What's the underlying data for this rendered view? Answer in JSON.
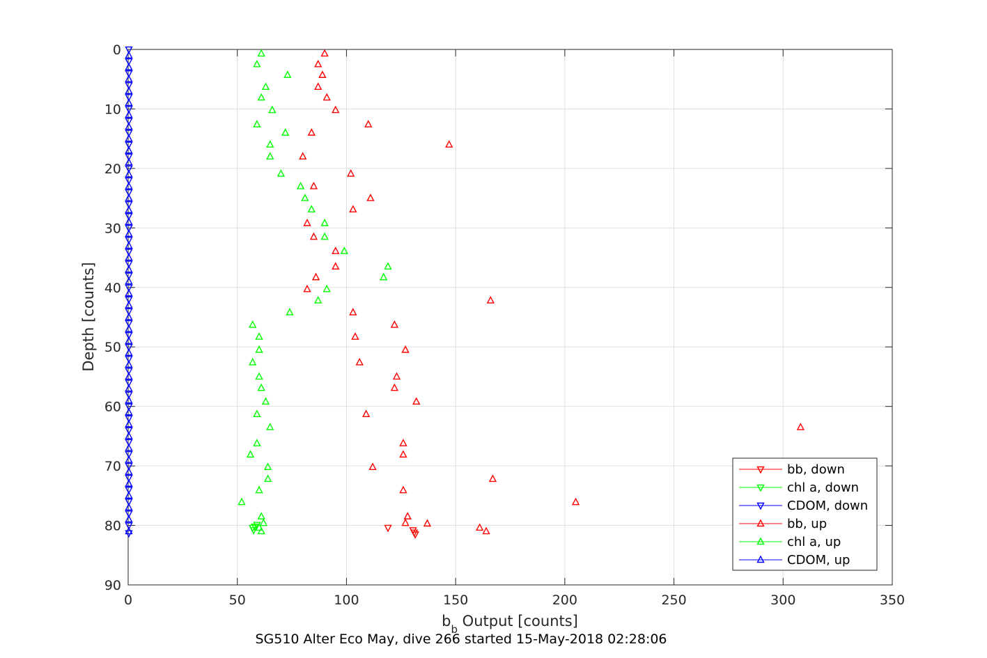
{
  "chart_data": {
    "type": "scatter",
    "xlabel_main": "b",
    "xlabel_sub": "b",
    "xlabel_rest": " Output [counts]",
    "ylabel": "Depth [counts]",
    "caption": "SG510 Alter Eco May, dive 266 started 15-May-2018 02:28:06",
    "xlim": [
      0,
      350
    ],
    "ylim": [
      0,
      90
    ],
    "y_reversed": true,
    "grid": true,
    "legend_position": "bottom-right",
    "x_ticks": [
      "0",
      "50",
      "100",
      "150",
      "200",
      "250",
      "300",
      "350"
    ],
    "y_ticks": [
      "0",
      "10",
      "20",
      "30",
      "40",
      "50",
      "60",
      "70",
      "80",
      "90"
    ],
    "legend": [
      {
        "label": "bb, down",
        "color": "#ff0000",
        "marker": "down"
      },
      {
        "label": "chl a, down",
        "color": "#00ff00",
        "marker": "down"
      },
      {
        "label": "CDOM, down",
        "color": "#0000ff",
        "marker": "down"
      },
      {
        "label": "bb, up",
        "color": "#ff0000",
        "marker": "up"
      },
      {
        "label": "chl a, up",
        "color": "#00ff00",
        "marker": "up"
      },
      {
        "label": "CDOM, up",
        "color": "#0000ff",
        "marker": "up"
      }
    ],
    "series": [
      {
        "name": "bb, down",
        "color": "#ff0000",
        "marker": "down",
        "points": [
          [
            119,
            80.4
          ],
          [
            130.5,
            80.8
          ],
          [
            131,
            81.2
          ],
          [
            131.5,
            81.5
          ]
        ]
      },
      {
        "name": "chl a, down",
        "color": "#00ff00",
        "marker": "down",
        "points": [
          [
            57,
            80.4
          ],
          [
            57.5,
            80.8
          ],
          [
            58,
            80.2
          ],
          [
            59,
            79.9
          ]
        ]
      },
      {
        "name": "CDOM, down",
        "color": "#0000ff",
        "marker": "down",
        "points": [
          [
            0.3,
            0
          ],
          [
            0.3,
            2
          ],
          [
            0.3,
            4
          ],
          [
            0.3,
            6
          ],
          [
            0.3,
            8
          ],
          [
            0.3,
            10
          ],
          [
            0.3,
            12
          ],
          [
            0.3,
            14
          ],
          [
            0.3,
            16
          ],
          [
            0.3,
            18
          ],
          [
            0.3,
            20
          ],
          [
            0.3,
            22
          ],
          [
            0.3,
            24
          ],
          [
            0.3,
            26
          ],
          [
            0.3,
            28
          ],
          [
            0.3,
            30
          ],
          [
            0.3,
            32
          ],
          [
            0.3,
            34
          ],
          [
            0.3,
            36
          ],
          [
            0.3,
            38
          ],
          [
            0.3,
            40
          ],
          [
            0.3,
            42
          ],
          [
            0.3,
            44
          ],
          [
            0.3,
            46
          ],
          [
            0.3,
            48
          ],
          [
            0.3,
            50
          ],
          [
            0.3,
            52
          ],
          [
            0.3,
            54
          ],
          [
            0.3,
            56
          ],
          [
            0.3,
            58
          ],
          [
            0.3,
            60
          ],
          [
            0.3,
            62
          ],
          [
            0.3,
            64
          ],
          [
            0.3,
            66
          ],
          [
            0.3,
            68
          ],
          [
            0.3,
            70
          ],
          [
            0.3,
            72
          ],
          [
            0.3,
            74
          ],
          [
            0.3,
            76
          ],
          [
            0.3,
            78
          ],
          [
            0.3,
            80
          ],
          [
            0.3,
            81.3
          ]
        ]
      },
      {
        "name": "bb, up",
        "color": "#ff0000",
        "marker": "up",
        "points": [
          [
            90,
            0.7
          ],
          [
            87,
            2.5
          ],
          [
            89,
            4.3
          ],
          [
            87,
            6.3
          ],
          [
            91,
            8.1
          ],
          [
            95,
            10.2
          ],
          [
            110,
            12.6
          ],
          [
            84,
            14.0
          ],
          [
            147,
            16.0
          ],
          [
            80,
            18.0
          ],
          [
            102,
            20.9
          ],
          [
            85,
            23.0
          ],
          [
            111,
            25.0
          ],
          [
            103,
            26.9
          ],
          [
            82,
            29.2
          ],
          [
            85,
            31.5
          ],
          [
            95,
            33.9
          ],
          [
            95,
            36.5
          ],
          [
            86,
            38.3
          ],
          [
            82,
            40.3
          ],
          [
            166,
            42.2
          ],
          [
            103,
            44.2
          ],
          [
            122,
            46.3
          ],
          [
            104,
            48.3
          ],
          [
            127,
            50.5
          ],
          [
            106,
            52.6
          ],
          [
            123,
            55.0
          ],
          [
            122,
            56.9
          ],
          [
            132,
            59.2
          ],
          [
            109,
            61.3
          ],
          [
            308,
            63.5
          ],
          [
            126,
            66.2
          ],
          [
            126,
            68.1
          ],
          [
            112,
            70.2
          ],
          [
            167,
            72.2
          ],
          [
            126,
            74.1
          ],
          [
            205,
            76.1
          ],
          [
            128,
            78.5
          ],
          [
            127,
            79.6
          ],
          [
            137,
            79.7
          ],
          [
            161,
            80.4
          ],
          [
            164,
            81.0
          ]
        ]
      },
      {
        "name": "chl a, up",
        "color": "#00ff00",
        "marker": "up",
        "points": [
          [
            61,
            0.7
          ],
          [
            59,
            2.5
          ],
          [
            73,
            4.3
          ],
          [
            63,
            6.3
          ],
          [
            61,
            8.1
          ],
          [
            66,
            10.2
          ],
          [
            59,
            12.6
          ],
          [
            72,
            14.0
          ],
          [
            65,
            16.0
          ],
          [
            65,
            18.0
          ],
          [
            70,
            20.9
          ],
          [
            79,
            23.0
          ],
          [
            81,
            25.0
          ],
          [
            84,
            26.9
          ],
          [
            90,
            29.2
          ],
          [
            90,
            31.5
          ],
          [
            99,
            33.9
          ],
          [
            119,
            36.5
          ],
          [
            117,
            38.3
          ],
          [
            91,
            40.3
          ],
          [
            87,
            42.2
          ],
          [
            74,
            44.2
          ],
          [
            57,
            46.3
          ],
          [
            60,
            48.3
          ],
          [
            60,
            50.5
          ],
          [
            57,
            52.6
          ],
          [
            60,
            55.0
          ],
          [
            61,
            56.9
          ],
          [
            63,
            59.2
          ],
          [
            59,
            61.3
          ],
          [
            65,
            63.5
          ],
          [
            59,
            66.2
          ],
          [
            56,
            68.1
          ],
          [
            64,
            70.2
          ],
          [
            64,
            72.2
          ],
          [
            60,
            74.1
          ],
          [
            52,
            76.1
          ],
          [
            61,
            78.5
          ],
          [
            62,
            79.6
          ],
          [
            60,
            80.4
          ],
          [
            61,
            81.0
          ]
        ]
      },
      {
        "name": "CDOM, up",
        "color": "#0000ff",
        "marker": "up",
        "points": [
          [
            0.3,
            1
          ],
          [
            0.3,
            3
          ],
          [
            0.3,
            5
          ],
          [
            0.3,
            7
          ],
          [
            0.3,
            9
          ],
          [
            0.3,
            11
          ],
          [
            0.3,
            13
          ],
          [
            0.3,
            15
          ],
          [
            0.3,
            17
          ],
          [
            0.3,
            19
          ],
          [
            0.3,
            21
          ],
          [
            0.3,
            23
          ],
          [
            0.3,
            25
          ],
          [
            0.3,
            27
          ],
          [
            0.3,
            29
          ],
          [
            0.3,
            31
          ],
          [
            0.3,
            33
          ],
          [
            0.3,
            35
          ],
          [
            0.3,
            37
          ],
          [
            0.3,
            39
          ],
          [
            0.3,
            41
          ],
          [
            0.3,
            43
          ],
          [
            0.3,
            45
          ],
          [
            0.3,
            47
          ],
          [
            0.3,
            49
          ],
          [
            0.3,
            51
          ],
          [
            0.3,
            53
          ],
          [
            0.3,
            55
          ],
          [
            0.3,
            57
          ],
          [
            0.3,
            59
          ],
          [
            0.3,
            61
          ],
          [
            0.3,
            63
          ],
          [
            0.3,
            65
          ],
          [
            0.3,
            67
          ],
          [
            0.3,
            69
          ],
          [
            0.3,
            71
          ],
          [
            0.3,
            73
          ],
          [
            0.3,
            75
          ],
          [
            0.3,
            77
          ],
          [
            0.3,
            79
          ],
          [
            0.3,
            81
          ]
        ]
      }
    ]
  }
}
